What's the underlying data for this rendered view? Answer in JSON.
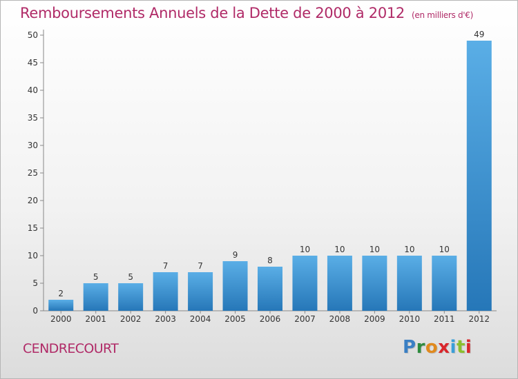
{
  "header": {
    "title": "Remboursements Annuels de la Dette de 2000 à 2012",
    "unit": "(en milliers d'€)"
  },
  "footer": {
    "commune": "CENDRECOURT",
    "logo_letters": [
      {
        "char": "P",
        "color": "#3a7fc4"
      },
      {
        "char": "r",
        "color": "#2e8b3e"
      },
      {
        "char": "o",
        "color": "#e08a1e"
      },
      {
        "char": "x",
        "color": "#d9262b"
      },
      {
        "char": "i",
        "color": "#3a9fd8"
      },
      {
        "char": "t",
        "color": "#8bbf2e"
      },
      {
        "char": "i",
        "color": "#d9262b"
      }
    ]
  },
  "chart_data": {
    "type": "bar",
    "title": "Remboursements Annuels de la Dette de 2000 à 2012",
    "xlabel": "",
    "ylabel": "",
    "categories": [
      "2000",
      "2001",
      "2002",
      "2003",
      "2004",
      "2005",
      "2006",
      "2007",
      "2008",
      "2009",
      "2010",
      "2011",
      "2012"
    ],
    "values": [
      2,
      5,
      5,
      7,
      7,
      9,
      8,
      10,
      10,
      10,
      10,
      10,
      49
    ],
    "data_labels": [
      "2",
      "5",
      "5",
      "7",
      "7",
      "9",
      "8",
      "10",
      "10",
      "10",
      "10",
      "10",
      "49"
    ],
    "ylim": [
      0,
      50
    ],
    "yticks": [
      0,
      5,
      10,
      15,
      20,
      25,
      30,
      35,
      40,
      45,
      50
    ],
    "grid": false,
    "bar_color_top": "#5aaee6",
    "bar_color_bottom": "#2677b8"
  }
}
